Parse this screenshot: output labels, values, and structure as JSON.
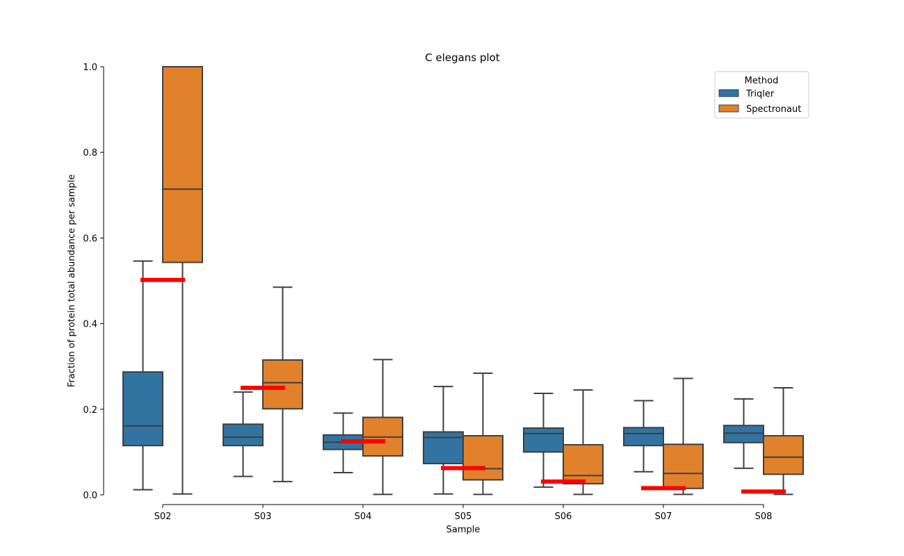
{
  "chart_data": {
    "type": "box",
    "title": "C elegans plot",
    "xlabel": "Sample",
    "ylabel": "Fraction of protein total abundance per sample",
    "ylim": [
      0.0,
      1.0
    ],
    "yticks": [
      "0.0",
      "0.2",
      "0.4",
      "0.6",
      "0.8",
      "1.0"
    ],
    "categories": [
      "S02",
      "S03",
      "S04",
      "S05",
      "S06",
      "S07",
      "S08"
    ],
    "legend": {
      "title": "Method",
      "position": "top-right",
      "entries": [
        "Triqler",
        "Spectronaut"
      ]
    },
    "series": [
      {
        "name": "Triqler",
        "color": "#3274a1",
        "boxes": [
          {
            "min": 0.012,
            "q1": 0.115,
            "median": 0.161,
            "q3": 0.287,
            "max": 0.546
          },
          {
            "min": 0.043,
            "q1": 0.115,
            "median": 0.135,
            "q3": 0.165,
            "max": 0.24
          },
          {
            "min": 0.052,
            "q1": 0.106,
            "median": 0.123,
            "q3": 0.14,
            "max": 0.191
          },
          {
            "min": 0.002,
            "q1": 0.073,
            "median": 0.134,
            "q3": 0.147,
            "max": 0.253
          },
          {
            "min": 0.018,
            "q1": 0.1,
            "median": 0.143,
            "q3": 0.156,
            "max": 0.237
          },
          {
            "min": 0.054,
            "q1": 0.115,
            "median": 0.143,
            "q3": 0.157,
            "max": 0.22
          },
          {
            "min": 0.062,
            "q1": 0.122,
            "median": 0.144,
            "q3": 0.162,
            "max": 0.224
          }
        ]
      },
      {
        "name": "Spectronaut",
        "color": "#e1812c",
        "boxes": [
          {
            "min": 0.002,
            "q1": 0.543,
            "median": 0.714,
            "q3": 1.0,
            "max": 1.0
          },
          {
            "min": 0.031,
            "q1": 0.201,
            "median": 0.262,
            "q3": 0.315,
            "max": 0.485
          },
          {
            "min": 0.001,
            "q1": 0.091,
            "median": 0.135,
            "q3": 0.181,
            "max": 0.316
          },
          {
            "min": 0.001,
            "q1": 0.035,
            "median": 0.061,
            "q3": 0.138,
            "max": 0.284
          },
          {
            "min": 0.001,
            "q1": 0.026,
            "median": 0.045,
            "q3": 0.117,
            "max": 0.245
          },
          {
            "min": 0.001,
            "q1": 0.015,
            "median": 0.05,
            "q3": 0.118,
            "max": 0.272
          },
          {
            "min": 0.001,
            "q1": 0.048,
            "median": 0.088,
            "q3": 0.138,
            "max": 0.25
          }
        ]
      }
    ],
    "reference_lines": {
      "color": "#ff0000",
      "values": [
        0.502,
        0.25,
        0.125,
        0.0625,
        0.031,
        0.0156,
        0.0078
      ]
    }
  }
}
